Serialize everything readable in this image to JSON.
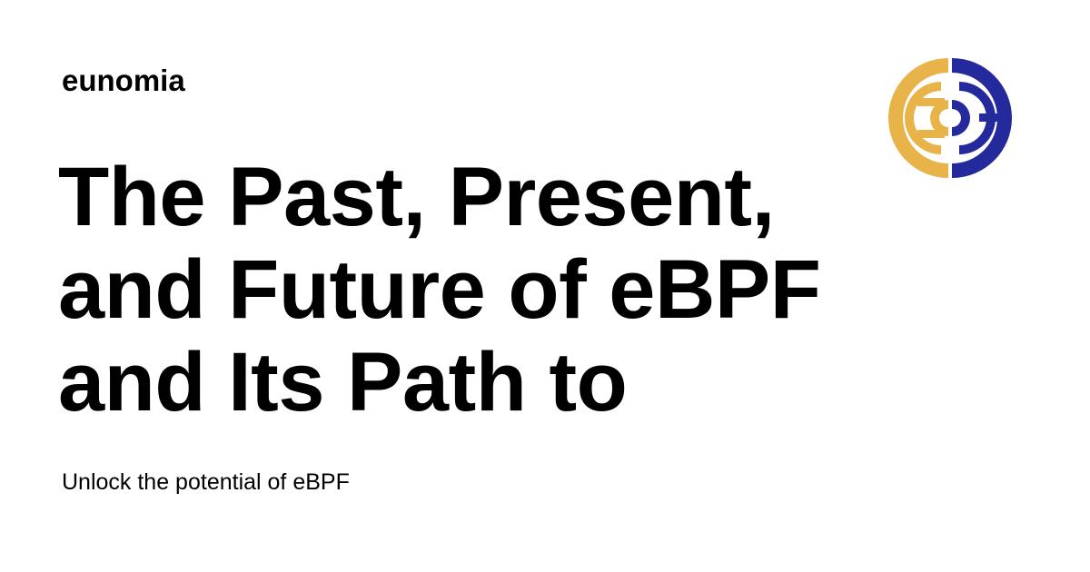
{
  "site": {
    "name": "eunomia"
  },
  "article": {
    "title_lines": [
      "The Past, Present,",
      "and Future of eBPF",
      "and Its Path to"
    ],
    "subtitle": "Unlock the potential of eBPF"
  },
  "logo": {
    "icon": "eunomia-logo-icon",
    "colors": {
      "gold": "#E8B44A",
      "navy": "#24299B"
    }
  },
  "colors": {
    "background": "#FFFFFF",
    "text": "#000000"
  }
}
